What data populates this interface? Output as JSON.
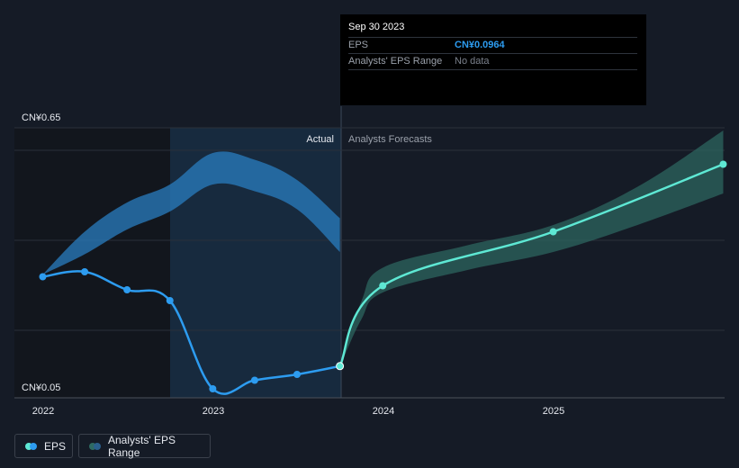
{
  "tooltip": {
    "date": "Sep 30 2023",
    "rows": [
      {
        "label": "EPS",
        "value": "CN¥0.0964"
      },
      {
        "label": "Analysts' EPS Range",
        "value": "No data"
      }
    ]
  },
  "legend": {
    "eps_label": "EPS",
    "range_label": "Analysts' EPS Range"
  },
  "colors": {
    "background": "#151b26",
    "actual_line": "#2d9cf0",
    "forecast_line": "#5ee8d4",
    "past_range": "#2a7ec0",
    "forecast_range": "#2e6a63"
  },
  "chart_data": {
    "type": "line",
    "title": "",
    "xlabel": "",
    "ylabel": "",
    "x_ticks": [
      "2022",
      "2023",
      "2024",
      "2025"
    ],
    "y_tick_labels": [
      "CN¥0.65",
      "CN¥0.05"
    ],
    "ylim": [
      0.05,
      0.65
    ],
    "divider_date": "2023-09-30",
    "region_labels": {
      "actual": "Actual",
      "forecast": "Analysts Forecasts"
    },
    "series": [
      {
        "name": "EPS",
        "segment": "actual",
        "points": [
          {
            "x": "2021-12-31",
            "y": 0.295
          },
          {
            "x": "2022-03-31",
            "y": 0.306
          },
          {
            "x": "2022-06-30",
            "y": 0.266
          },
          {
            "x": "2022-09-30",
            "y": 0.242
          },
          {
            "x": "2022-12-31",
            "y": 0.046
          },
          {
            "x": "2023-03-31",
            "y": 0.065
          },
          {
            "x": "2023-06-30",
            "y": 0.078
          },
          {
            "x": "2023-09-30",
            "y": 0.0964
          }
        ]
      },
      {
        "name": "EPS",
        "segment": "forecast",
        "points": [
          {
            "x": "2023-09-30",
            "y": 0.0964
          },
          {
            "x": "2023-12-31",
            "y": 0.275
          },
          {
            "x": "2024-12-31",
            "y": 0.395
          },
          {
            "x": "2025-12-31",
            "y": 0.545
          }
        ]
      }
    ],
    "ranges": [
      {
        "name": "Analysts' EPS Range",
        "segment": "past",
        "x": [
          "2021-12-31",
          "2022-03-31",
          "2022-06-30",
          "2022-09-30",
          "2022-12-31",
          "2023-03-31",
          "2023-06-30",
          "2023-09-30"
        ],
        "low": [
          0.3,
          0.345,
          0.4,
          0.44,
          0.5,
          0.485,
          0.445,
          0.35
        ],
        "high": [
          0.3,
          0.395,
          0.46,
          0.5,
          0.57,
          0.555,
          0.51,
          0.425
        ]
      },
      {
        "name": "Analysts' EPS Range",
        "segment": "forecast",
        "x": [
          "2023-09-30",
          "2023-11-15",
          "2023-12-31",
          "2024-06-30",
          "2024-12-31",
          "2025-06-30",
          "2025-12-31"
        ],
        "low": [
          0.095,
          0.2,
          0.26,
          0.31,
          0.35,
          0.41,
          0.48
        ],
        "high": [
          0.095,
          0.24,
          0.315,
          0.365,
          0.41,
          0.495,
          0.62
        ]
      }
    ],
    "grid": true,
    "legend_position": "bottom-left"
  }
}
